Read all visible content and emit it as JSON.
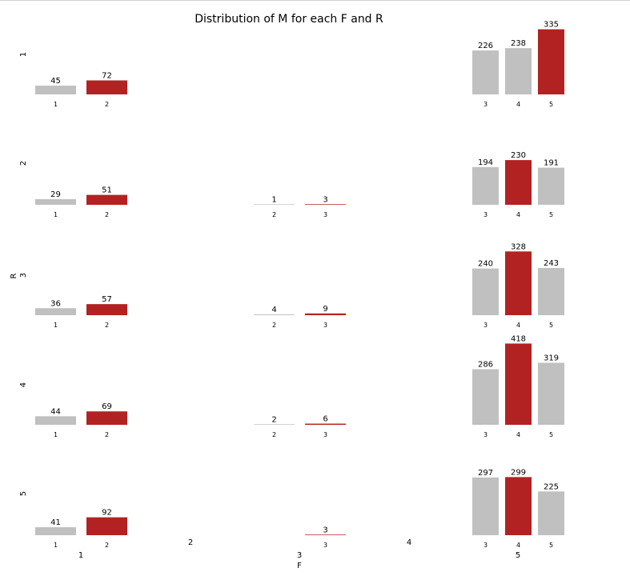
{
  "chart_data": {
    "type": "bar",
    "title": "Distribution of M for each F and R",
    "xlabel": "F",
    "ylabel": "R",
    "grid": false,
    "colors": {
      "default": "#c0c0c0",
      "highlight": "#b22222"
    },
    "rows": [
      "1",
      "2",
      "3",
      "4",
      "5"
    ],
    "columns": [
      "1",
      "2",
      "3",
      "4",
      "5"
    ],
    "facets": [
      {
        "r": "1",
        "f": "1",
        "bars": [
          {
            "m": "1",
            "value": 45,
            "highlight": false
          },
          {
            "m": "2",
            "value": 72,
            "highlight": true
          }
        ]
      },
      {
        "r": "1",
        "f": "5",
        "bars": [
          {
            "m": "3",
            "value": 226,
            "highlight": false
          },
          {
            "m": "4",
            "value": 238,
            "highlight": false
          },
          {
            "m": "5",
            "value": 335,
            "highlight": true
          }
        ]
      },
      {
        "r": "2",
        "f": "1",
        "bars": [
          {
            "m": "1",
            "value": 29,
            "highlight": false
          },
          {
            "m": "2",
            "value": 51,
            "highlight": true
          }
        ]
      },
      {
        "r": "2",
        "f": "3",
        "bars": [
          {
            "m": "2",
            "value": 1,
            "highlight": false
          },
          {
            "m": "3",
            "value": 3,
            "highlight": true
          }
        ]
      },
      {
        "r": "2",
        "f": "5",
        "bars": [
          {
            "m": "3",
            "value": 194,
            "highlight": false
          },
          {
            "m": "4",
            "value": 230,
            "highlight": true
          },
          {
            "m": "5",
            "value": 191,
            "highlight": false
          }
        ]
      },
      {
        "r": "3",
        "f": "1",
        "bars": [
          {
            "m": "1",
            "value": 36,
            "highlight": false
          },
          {
            "m": "2",
            "value": 57,
            "highlight": true
          }
        ]
      },
      {
        "r": "3",
        "f": "3",
        "bars": [
          {
            "m": "2",
            "value": 4,
            "highlight": false
          },
          {
            "m": "3",
            "value": 9,
            "highlight": true
          }
        ]
      },
      {
        "r": "3",
        "f": "5",
        "bars": [
          {
            "m": "3",
            "value": 240,
            "highlight": false
          },
          {
            "m": "4",
            "value": 328,
            "highlight": true
          },
          {
            "m": "5",
            "value": 243,
            "highlight": false
          }
        ]
      },
      {
        "r": "4",
        "f": "1",
        "bars": [
          {
            "m": "1",
            "value": 44,
            "highlight": false
          },
          {
            "m": "2",
            "value": 69,
            "highlight": true
          }
        ]
      },
      {
        "r": "4",
        "f": "3",
        "bars": [
          {
            "m": "2",
            "value": 2,
            "highlight": false
          },
          {
            "m": "3",
            "value": 6,
            "highlight": true
          }
        ]
      },
      {
        "r": "4",
        "f": "5",
        "bars": [
          {
            "m": "3",
            "value": 286,
            "highlight": false
          },
          {
            "m": "4",
            "value": 418,
            "highlight": true
          },
          {
            "m": "5",
            "value": 319,
            "highlight": false
          }
        ]
      },
      {
        "r": "5",
        "f": "1",
        "bars": [
          {
            "m": "1",
            "value": 41,
            "highlight": false
          },
          {
            "m": "2",
            "value": 92,
            "highlight": true
          }
        ]
      },
      {
        "r": "5",
        "f": "3",
        "bars": [
          {
            "m": "3",
            "value": 3,
            "highlight": true
          }
        ]
      },
      {
        "r": "5",
        "f": "5",
        "bars": [
          {
            "m": "3",
            "value": 297,
            "highlight": false
          },
          {
            "m": "4",
            "value": 299,
            "highlight": true
          },
          {
            "m": "5",
            "value": 225,
            "highlight": false
          }
        ]
      }
    ]
  }
}
